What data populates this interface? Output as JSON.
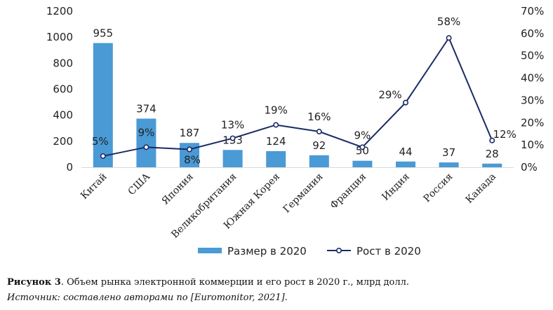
{
  "chart_data": {
    "type": "bar+line",
    "categories": [
      "Китай",
      "США",
      "Япония",
      "Великобритания",
      "Южная Корея",
      "Германия",
      "Франция",
      "Индия",
      "Россия",
      "Канада"
    ],
    "series": [
      {
        "name": "Размер в 2020",
        "type": "bar",
        "axis": "left",
        "values": [
          955,
          374,
          187,
          133,
          124,
          92,
          50,
          44,
          37,
          28
        ],
        "labels": [
          "955",
          "374",
          "187",
          "133",
          "124",
          "92",
          "50",
          "44",
          "37",
          "28"
        ]
      },
      {
        "name": "Рост в 2020",
        "type": "line",
        "axis": "right",
        "values": [
          5,
          9,
          8,
          13,
          19,
          16,
          9,
          29,
          58,
          12
        ],
        "labels": [
          "5%",
          "9%",
          "8%",
          "13%",
          "19%",
          "16%",
          "9%",
          "29%",
          "58%",
          "12%"
        ]
      }
    ],
    "y_left": {
      "range": [
        0,
        1200
      ],
      "ticks": [
        "0",
        "200",
        "400",
        "600",
        "800",
        "1000",
        "1200"
      ]
    },
    "y_right": {
      "range": [
        0,
        70
      ],
      "ticks": [
        "0%",
        "10%",
        "20%",
        "30%",
        "40%",
        "50%",
        "60%",
        "70%"
      ]
    },
    "legend_position": "bottom",
    "grid": false
  },
  "colors": {
    "bar": "#4a9ad6",
    "line": "#1b2a66",
    "marker_fill": "#ffffff",
    "text": "#222222"
  },
  "caption": {
    "label": "Рисунок 3",
    "text": ". Объем рынка электронной коммерции и его рост в 2020 г., млрд долл.",
    "source": "Источник: составлено авторами по [Euromonitor, 2021]."
  }
}
